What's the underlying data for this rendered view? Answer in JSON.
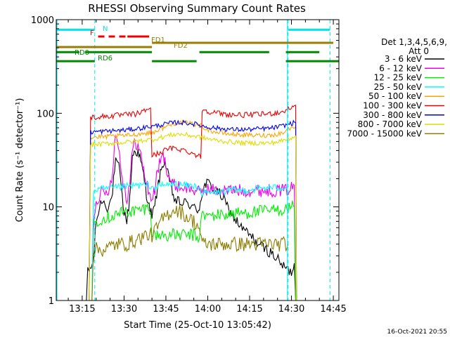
{
  "chart_data": {
    "type": "line",
    "title": "RHESSI Observing Summary Count Rates",
    "xlabel": "Start Time (25-Oct-10 13:05:42)",
    "ylabel": "Count Rate (s⁻¹ detector⁻¹)",
    "y_scale": "log",
    "ylim": [
      1,
      1000
    ],
    "xlim_minutes": [
      5.7,
      107
    ],
    "x_ticks": [
      {
        "m": 15,
        "label": "13:15"
      },
      {
        "m": 30,
        "label": "13:30"
      },
      {
        "m": 45,
        "label": "13:45"
      },
      {
        "m": 60,
        "label": "14:00"
      },
      {
        "m": 75,
        "label": "14:15"
      },
      {
        "m": 90,
        "label": "14:30"
      },
      {
        "m": 105,
        "label": "14:45"
      }
    ],
    "y_ticks": [
      {
        "v": 1,
        "label": "1"
      },
      {
        "v": 10,
        "label": "10"
      },
      {
        "v": 100,
        "label": "100"
      },
      {
        "v": 1000,
        "label": "1000"
      }
    ],
    "legend_header": [
      "Det 1,3,4,5,6,9,",
      "Att 0"
    ],
    "legend_position": "right",
    "timestamp": "16-Oct-2021 20:55",
    "flags": [
      {
        "label": "N",
        "color": "#00e5ee",
        "segments": [
          [
            5.7,
            19.5
          ],
          [
            88.8,
            103.8
          ]
        ],
        "v": 780
      },
      {
        "label": "F",
        "color": "#ee0000",
        "dashed_segment": [
          20.7,
          31.2
        ],
        "solid_segment": [
          31.2,
          39
        ],
        "v": 660
      },
      {
        "label": "FD1",
        "color": "#9a7d00",
        "segments": [
          [
            5.7,
            40
          ]
        ],
        "v": 510
      },
      {
        "label": "FD2",
        "color": "#9a7d00",
        "segments": [
          [
            40,
            105
          ]
        ],
        "v": 565
      },
      {
        "label": "RD0",
        "color": "#008800",
        "segments": [
          [
            5.7,
            14
          ],
          [
            16,
            40
          ],
          [
            57,
            82
          ],
          [
            88,
            100
          ]
        ],
        "v": 450
      },
      {
        "label": "RD6",
        "color": "#008800",
        "segments": [
          [
            5.7,
            19.5
          ],
          [
            40,
            56
          ],
          [
            88,
            107
          ]
        ],
        "v": 360
      }
    ],
    "saa_lines_minutes": [
      19.5,
      88.8,
      103.8
    ],
    "series": [
      {
        "name": "3 - 6 keV",
        "color": "#000000",
        "points": [
          [
            16.5,
            1
          ],
          [
            17,
            2
          ],
          [
            19,
            2.5
          ],
          [
            20,
            7
          ],
          [
            22,
            12
          ],
          [
            24,
            10
          ],
          [
            25.5,
            12
          ],
          [
            27,
            30
          ],
          [
            28.5,
            25
          ],
          [
            29,
            15
          ],
          [
            30,
            9
          ],
          [
            31,
            7
          ],
          [
            32,
            12
          ],
          [
            33,
            35
          ],
          [
            34,
            40
          ],
          [
            35,
            38
          ],
          [
            36,
            30
          ],
          [
            37,
            22
          ],
          [
            38,
            14
          ],
          [
            39,
            10
          ],
          [
            40,
            8
          ],
          [
            41,
            10
          ],
          [
            42,
            16
          ],
          [
            43,
            22
          ],
          [
            44,
            30
          ],
          [
            45,
            28
          ],
          [
            46,
            20
          ],
          [
            47,
            16
          ],
          [
            48,
            12
          ],
          [
            50,
            11
          ],
          [
            52,
            11
          ],
          [
            54,
            10.5
          ],
          [
            56,
            9
          ],
          [
            57,
            10
          ],
          [
            58,
            14
          ],
          [
            59,
            17
          ],
          [
            60,
            18
          ],
          [
            61,
            17
          ],
          [
            63,
            15
          ],
          [
            65,
            13
          ],
          [
            67,
            10
          ],
          [
            69,
            8
          ],
          [
            72,
            6
          ],
          [
            75,
            5
          ],
          [
            78,
            4
          ],
          [
            81,
            3.5
          ],
          [
            84,
            3
          ],
          [
            86,
            2.5
          ],
          [
            88,
            2.2
          ],
          [
            90,
            2
          ],
          [
            91,
            2.5
          ],
          [
            91.5,
            1
          ]
        ]
      },
      {
        "name": "6 - 12 keV",
        "color": "#ee00ee",
        "points": [
          [
            18.5,
            1
          ],
          [
            19,
            6
          ],
          [
            20,
            12
          ],
          [
            22,
            14
          ],
          [
            24,
            14
          ],
          [
            25.5,
            20
          ],
          [
            27,
            60
          ],
          [
            28,
            45
          ],
          [
            29,
            25
          ],
          [
            30,
            16
          ],
          [
            31,
            12
          ],
          [
            32,
            18
          ],
          [
            33,
            40
          ],
          [
            34,
            50
          ],
          [
            35,
            45
          ],
          [
            36,
            35
          ],
          [
            37,
            25
          ],
          [
            38,
            18
          ],
          [
            39,
            14
          ],
          [
            40,
            12
          ],
          [
            41,
            15
          ],
          [
            42,
            25
          ],
          [
            43,
            30
          ],
          [
            44,
            35
          ],
          [
            45,
            28
          ],
          [
            46,
            22
          ],
          [
            47,
            18
          ],
          [
            48,
            17
          ],
          [
            50,
            16.5
          ],
          [
            52,
            16
          ],
          [
            54,
            15.5
          ],
          [
            56,
            15
          ],
          [
            57,
            14
          ],
          [
            58,
            15
          ],
          [
            60,
            15.5
          ],
          [
            63,
            15
          ],
          [
            66,
            15
          ],
          [
            70,
            15
          ],
          [
            74,
            15
          ],
          [
            78,
            15
          ],
          [
            82,
            15
          ],
          [
            86,
            15
          ],
          [
            88,
            15
          ],
          [
            90,
            16
          ],
          [
            91,
            17
          ],
          [
            91.5,
            1
          ]
        ]
      },
      {
        "name": "12 - 25 keV",
        "color": "#00ee00",
        "points": [
          [
            18.5,
            1
          ],
          [
            19,
            7
          ],
          [
            22,
            7.5
          ],
          [
            25,
            8
          ],
          [
            28,
            8.5
          ],
          [
            31,
            9
          ],
          [
            34,
            9
          ],
          [
            37,
            9.5
          ],
          [
            39.5,
            10
          ],
          [
            40,
            5
          ],
          [
            43,
            5
          ],
          [
            46,
            5
          ],
          [
            49,
            5
          ],
          [
            52,
            5
          ],
          [
            55,
            5
          ],
          [
            57,
            4.5
          ],
          [
            57.5,
            8
          ],
          [
            60,
            8
          ],
          [
            64,
            8.2
          ],
          [
            68,
            8.4
          ],
          [
            72,
            8.6
          ],
          [
            76,
            8.8
          ],
          [
            80,
            9
          ],
          [
            84,
            9.2
          ],
          [
            88,
            9.5
          ],
          [
            90,
            10
          ],
          [
            91,
            10
          ],
          [
            91.5,
            1
          ]
        ]
      },
      {
        "name": "25 - 50 keV",
        "color": "#00ffff",
        "points": [
          [
            18.5,
            1
          ],
          [
            19,
            15
          ],
          [
            23,
            15.5
          ],
          [
            27,
            16
          ],
          [
            31,
            16.5
          ],
          [
            35,
            17
          ],
          [
            39,
            17
          ],
          [
            39.5,
            17
          ],
          [
            40,
            16
          ],
          [
            44,
            17
          ],
          [
            48,
            17.5
          ],
          [
            52,
            17
          ],
          [
            56,
            16.5
          ],
          [
            57,
            16
          ],
          [
            57.5,
            14
          ],
          [
            61,
            14
          ],
          [
            65,
            14.5
          ],
          [
            69,
            15
          ],
          [
            73,
            15
          ],
          [
            77,
            15.5
          ],
          [
            81,
            16
          ],
          [
            85,
            16
          ],
          [
            88.5,
            16.5
          ],
          [
            88.8,
            16.5
          ]
        ]
      },
      {
        "name": "50 - 100 keV",
        "color": "#ffa500",
        "points": [
          [
            17.5,
            1
          ],
          [
            18,
            55
          ],
          [
            23,
            56
          ],
          [
            27,
            57
          ],
          [
            31,
            58
          ],
          [
            35,
            60
          ],
          [
            39,
            62
          ],
          [
            40,
            62
          ],
          [
            42,
            66
          ],
          [
            45,
            72
          ],
          [
            48,
            78
          ],
          [
            51,
            80
          ],
          [
            54,
            78
          ],
          [
            57,
            75
          ],
          [
            59,
            70
          ],
          [
            61,
            65
          ],
          [
            64,
            62
          ],
          [
            68,
            60
          ],
          [
            72,
            59
          ],
          [
            76,
            58
          ],
          [
            80,
            58
          ],
          [
            84,
            59
          ],
          [
            87,
            62
          ],
          [
            89,
            68
          ],
          [
            91,
            72
          ],
          [
            91.5,
            72
          ],
          [
            91.8,
            1
          ]
        ]
      },
      {
        "name": "100 - 300 keV",
        "color": "#ee0000",
        "points": [
          [
            17.5,
            1
          ],
          [
            18,
            90
          ],
          [
            22,
            92
          ],
          [
            26,
            94
          ],
          [
            30,
            96
          ],
          [
            34,
            98
          ],
          [
            36,
            102
          ],
          [
            38,
            108
          ],
          [
            39,
            115
          ],
          [
            39.5,
            115
          ],
          [
            40,
            35
          ],
          [
            43,
            38
          ],
          [
            46,
            42
          ],
          [
            49,
            42
          ],
          [
            52,
            40
          ],
          [
            55,
            37
          ],
          [
            57.5,
            34
          ],
          [
            58,
            110
          ],
          [
            62,
            102
          ],
          [
            66,
            98
          ],
          [
            70,
            96
          ],
          [
            74,
            96
          ],
          [
            78,
            97
          ],
          [
            82,
            99
          ],
          [
            86,
            102
          ],
          [
            88,
            108
          ],
          [
            90,
            115
          ],
          [
            91,
            122
          ],
          [
            91.5,
            122
          ],
          [
            91.8,
            1
          ]
        ]
      },
      {
        "name": "300 - 800 keV",
        "color": "#0000ee",
        "points": [
          [
            17.5,
            1
          ],
          [
            18,
            63
          ],
          [
            22,
            64
          ],
          [
            26,
            65
          ],
          [
            30,
            66
          ],
          [
            34,
            68
          ],
          [
            37,
            70
          ],
          [
            39,
            72
          ],
          [
            40,
            72
          ],
          [
            43,
            75
          ],
          [
            46,
            78
          ],
          [
            49,
            80
          ],
          [
            52,
            79
          ],
          [
            55,
            77
          ],
          [
            57,
            75
          ],
          [
            58,
            73
          ],
          [
            62,
            70
          ],
          [
            66,
            68
          ],
          [
            70,
            67
          ],
          [
            74,
            67
          ],
          [
            78,
            68
          ],
          [
            82,
            69
          ],
          [
            86,
            72
          ],
          [
            88,
            75
          ],
          [
            90,
            78
          ],
          [
            91,
            80
          ],
          [
            91.5,
            80
          ],
          [
            91.8,
            1
          ]
        ]
      },
      {
        "name": "800 - 7000 keV",
        "color": "#dddd00",
        "points": [
          [
            17.5,
            1
          ],
          [
            18,
            46
          ],
          [
            22,
            47
          ],
          [
            26,
            48
          ],
          [
            30,
            49
          ],
          [
            34,
            50
          ],
          [
            38,
            52
          ],
          [
            40,
            52
          ],
          [
            43,
            55
          ],
          [
            46,
            58
          ],
          [
            49,
            60
          ],
          [
            52,
            59
          ],
          [
            55,
            57
          ],
          [
            57,
            56
          ],
          [
            58,
            55
          ],
          [
            62,
            52
          ],
          [
            66,
            50
          ],
          [
            70,
            49
          ],
          [
            74,
            48
          ],
          [
            78,
            48
          ],
          [
            82,
            48
          ],
          [
            86,
            50
          ],
          [
            88,
            52
          ],
          [
            90,
            55
          ],
          [
            91,
            57
          ],
          [
            91.5,
            57
          ],
          [
            91.8,
            1
          ]
        ]
      },
      {
        "name": "7000 - 15000 keV",
        "color": "#8b7d00",
        "points": [
          [
            18.5,
            1
          ],
          [
            19,
            3.5
          ],
          [
            23,
            3.5
          ],
          [
            27,
            4
          ],
          [
            31,
            4
          ],
          [
            35,
            4.5
          ],
          [
            38,
            5
          ],
          [
            40,
            5
          ],
          [
            42,
            6
          ],
          [
            44,
            7.5
          ],
          [
            46,
            8.5
          ],
          [
            48,
            9.5
          ],
          [
            50,
            9
          ],
          [
            52,
            8
          ],
          [
            55,
            7
          ],
          [
            57,
            6
          ],
          [
            58,
            4
          ],
          [
            62,
            4
          ],
          [
            66,
            4
          ],
          [
            70,
            4
          ],
          [
            74,
            4
          ],
          [
            78,
            4
          ],
          [
            82,
            4
          ],
          [
            86,
            4
          ],
          [
            88.8,
            4
          ]
        ]
      }
    ]
  }
}
